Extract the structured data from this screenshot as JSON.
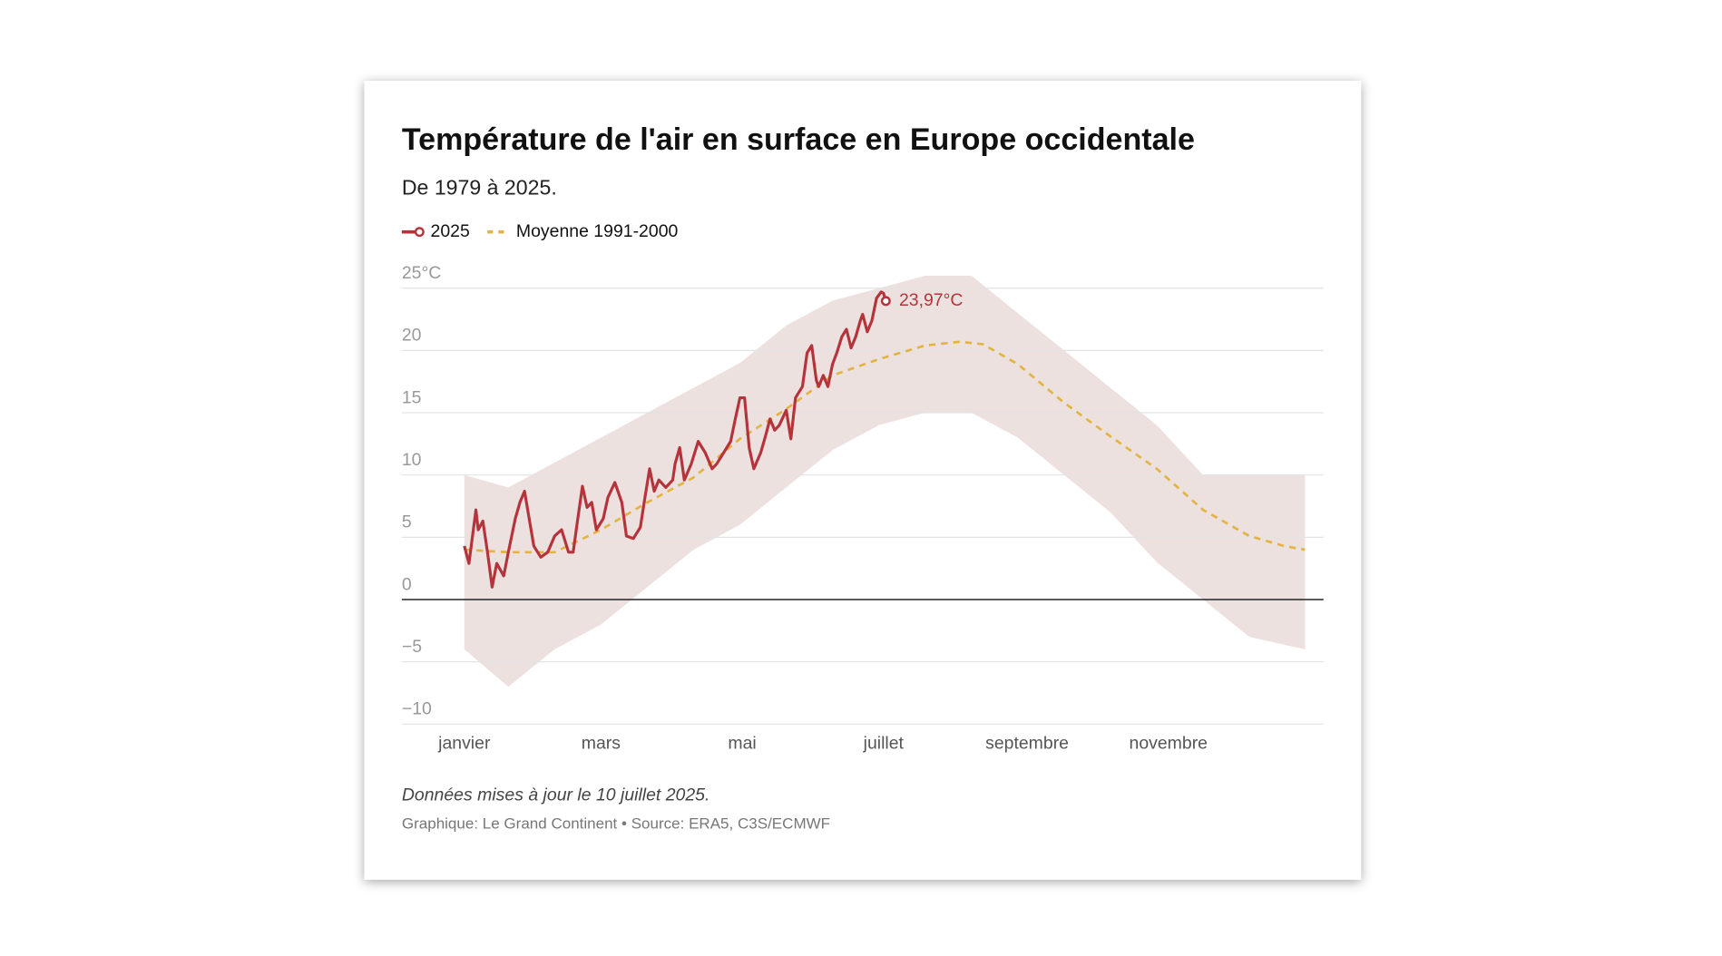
{
  "chart_data": {
    "type": "line",
    "title": "Température de l'air en surface en Europe occidentale",
    "subtitle": "De 1979 à 2025.",
    "note": "Données mises à jour le 10 juillet 2025.",
    "source": "Graphique: Le Grand Continent • Source: ERA5, C3S/ECMWF",
    "xlim": [
      -26,
      372
    ],
    "xticks": [
      {
        "value": 1,
        "label": "janvier"
      },
      {
        "value": 60,
        "label": "mars"
      },
      {
        "value": 121,
        "label": "mai"
      },
      {
        "value": 182,
        "label": "juillet"
      },
      {
        "value": 244,
        "label": "septembre"
      },
      {
        "value": 305,
        "label": "novembre"
      }
    ],
    "ylim": [
      -10,
      25
    ],
    "yticks": [
      {
        "value": -10,
        "label": "−10"
      },
      {
        "value": -5,
        "label": "−5"
      },
      0,
      5,
      10,
      15,
      20,
      {
        "value": 25,
        "label": "25°C"
      }
    ],
    "grid": true,
    "zero_line": true,
    "legend": "top-left",
    "band": {
      "color": "#eadcda",
      "x": [
        1,
        20,
        40,
        60,
        80,
        100,
        120,
        140,
        160,
        180,
        200,
        220,
        240,
        260,
        280,
        300,
        320,
        340,
        364
      ],
      "low": [
        -4,
        -7,
        -4,
        -2,
        1,
        4,
        6,
        9,
        12,
        14,
        15,
        15,
        13,
        10,
        7,
        3,
        0,
        -3,
        -4
      ],
      "high": [
        10,
        9,
        11,
        13,
        15,
        17,
        19,
        22,
        24,
        25,
        26,
        26,
        23,
        20,
        17,
        14,
        10,
        10,
        10
      ]
    },
    "series": [
      {
        "name": "2025",
        "color": "#b5333a",
        "end_label": "23,97°C",
        "x": [
          1,
          3,
          6,
          7,
          9,
          11,
          13,
          15,
          18,
          20,
          23,
          25,
          27,
          29,
          31,
          34,
          37,
          40,
          43,
          46,
          48,
          50,
          52,
          54,
          56,
          58,
          61,
          63,
          66,
          69,
          71,
          74,
          77,
          79,
          81,
          83,
          85,
          88,
          91,
          92,
          94,
          96,
          99,
          102,
          105,
          108,
          110,
          113,
          116,
          118,
          120,
          122,
          124,
          126,
          129,
          131,
          133,
          135,
          137,
          140,
          142,
          144,
          147,
          149,
          151,
          153,
          154,
          156,
          158,
          160,
          162,
          164,
          166,
          168,
          170,
          172,
          173,
          175,
          177,
          179,
          181,
          182,
          183
        ],
        "values": [
          4.3,
          2.9,
          7.2,
          5.6,
          6.3,
          3.8,
          1.0,
          2.9,
          1.9,
          3.8,
          6.5,
          7.8,
          8.7,
          6.5,
          4.3,
          3.4,
          3.8,
          5.1,
          5.6,
          3.8,
          3.8,
          6.5,
          9.1,
          7.4,
          7.8,
          5.6,
          6.5,
          8.2,
          9.4,
          7.8,
          5.1,
          4.9,
          5.8,
          8.2,
          10.5,
          8.7,
          9.6,
          9.0,
          9.6,
          10.9,
          12.2,
          9.6,
          10.9,
          12.7,
          11.8,
          10.5,
          10.9,
          11.8,
          12.7,
          14.5,
          16.2,
          16.2,
          12.2,
          10.5,
          11.8,
          13.1,
          14.5,
          13.6,
          14.0,
          15.2,
          12.9,
          16.2,
          17.1,
          19.8,
          20.4,
          17.6,
          17.1,
          18.0,
          17.1,
          18.9,
          19.9,
          21.1,
          21.7,
          20.2,
          21.1,
          22.4,
          22.9,
          21.5,
          22.4,
          24.2,
          24.7,
          24.6,
          23.97
        ]
      },
      {
        "name": "Moyenne 1991-2000",
        "color": "#e2b443",
        "dashed": true,
        "x": [
          1,
          20,
          40,
          60,
          80,
          100,
          120,
          140,
          160,
          180,
          200,
          215,
          225,
          240,
          260,
          280,
          300,
          320,
          340,
          355,
          364
        ],
        "values": [
          4.0,
          3.8,
          3.8,
          5.6,
          7.8,
          9.8,
          12.9,
          15.3,
          18.0,
          19.3,
          20.4,
          20.7,
          20.5,
          18.9,
          15.8,
          13.1,
          10.5,
          7.2,
          5.1,
          4.3,
          4.0
        ]
      }
    ]
  }
}
